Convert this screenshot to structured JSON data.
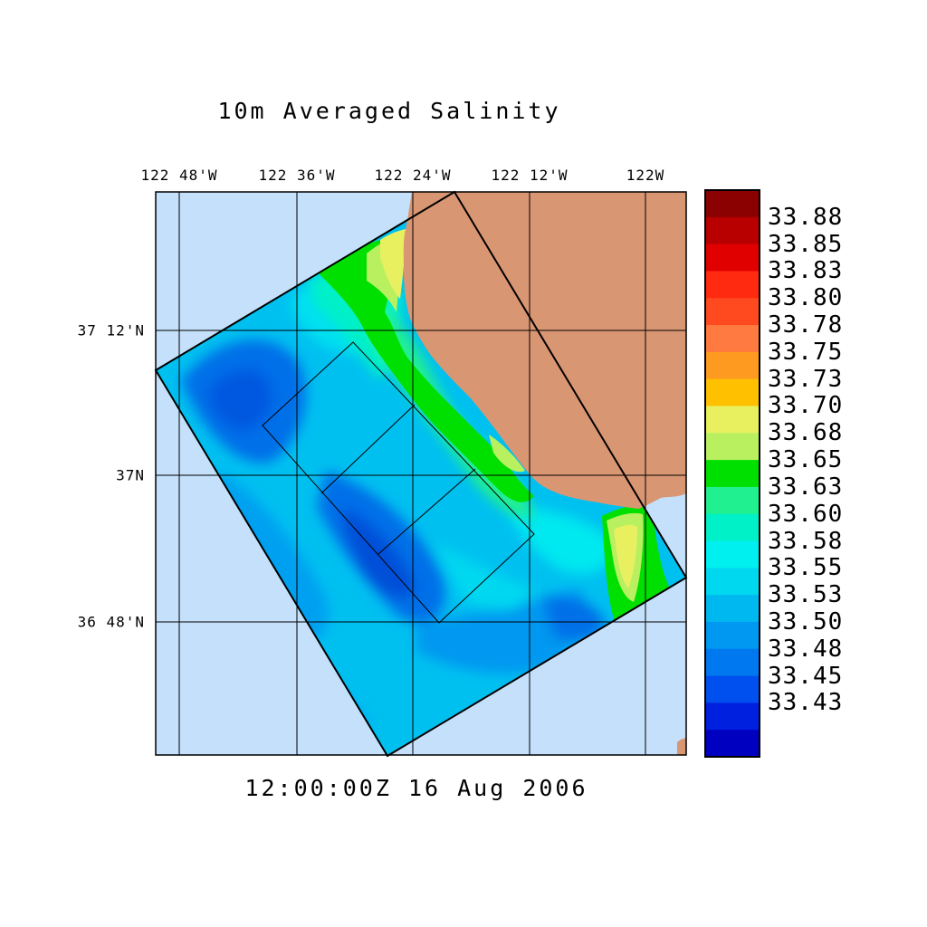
{
  "title": "10m Averaged Salinity",
  "timestamp": "12:00:00Z  16 Aug 2006",
  "map": {
    "lon_labels": [
      "122 48'W",
      "122 36'W",
      "122 24'W",
      "122 12'W",
      "122W"
    ],
    "lat_labels": [
      "37 12'N",
      "37N",
      "36 48'N"
    ],
    "colors": {
      "ocean_background": "#c4e0fa",
      "land": "#d99673",
      "grid": "#000000"
    }
  },
  "colorbar": {
    "labels": [
      "33.88",
      "33.85",
      "33.83",
      "33.80",
      "33.78",
      "33.75",
      "33.73",
      "33.70",
      "33.68",
      "33.65",
      "33.63",
      "33.60",
      "33.58",
      "33.55",
      "33.53",
      "33.50",
      "33.48",
      "33.45",
      "33.43"
    ],
    "colors": [
      "#8b0000",
      "#b80000",
      "#e00000",
      "#ff2a10",
      "#ff4a20",
      "#ff7a40",
      "#ff9a20",
      "#ffc000",
      "#e8f060",
      "#b8f060",
      "#00e000",
      "#20f090",
      "#00f0c8",
      "#00f0f0",
      "#00d8f0",
      "#00b8f0",
      "#0098f0",
      "#0078f0",
      "#0050f0",
      "#0020e0",
      "#0000c0"
    ]
  }
}
